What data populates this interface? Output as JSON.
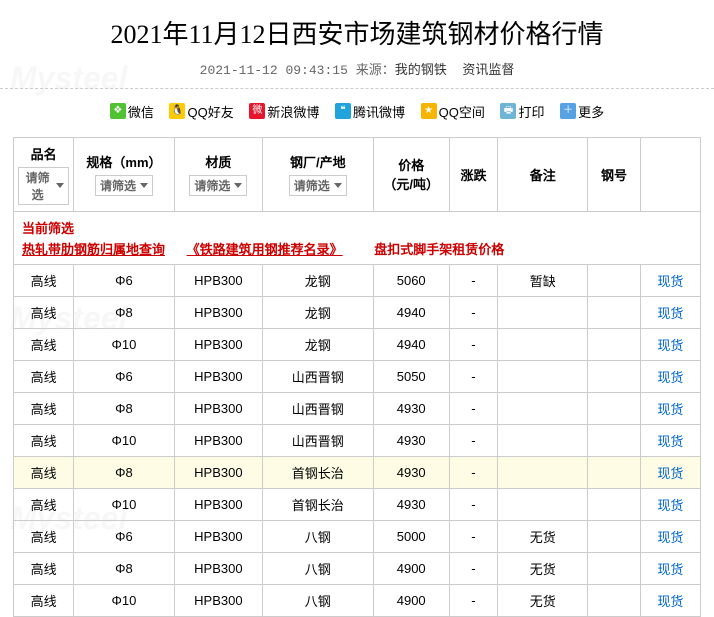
{
  "page": {
    "title": "2021年11月12日西安市场建筑钢材价格行情",
    "datetime": "2021-11-12 09:43:15",
    "source_label": "来源：",
    "source_name": "我的钢铁",
    "supervision": "资讯监督",
    "watermark": "Mysteel"
  },
  "share": {
    "wechat": "微信",
    "qq": "QQ好友",
    "weibo": "新浪微博",
    "tencent": "腾讯微博",
    "qzone": "QQ空间",
    "print": "打印",
    "more": "更多"
  },
  "share_colors": {
    "wechat": "#51c332",
    "qq": "#ffcb05",
    "weibo": "#e6162d",
    "tencent": "#21a3dc",
    "qzone": "#f8b500",
    "print": "#6db4d6",
    "more": "#56a2e3"
  },
  "table": {
    "headers": {
      "name": "品名",
      "spec": "规格（mm）",
      "material": "材质",
      "origin": "钢厂/产地",
      "price": "价格\n（元/吨）",
      "change": "涨跌",
      "remark": "备注",
      "steel_no": "钢号"
    },
    "filter_placeholder": "请筛选",
    "links_row": {
      "current_filter": "当前筛选",
      "link1": "热轧带肋钢筋归属地查询",
      "link2": "《铁路建筑用钢推荐名录》",
      "link3": "盘扣式脚手架租赁价格"
    },
    "stock_link": "现货",
    "rows": [
      {
        "name": "高线",
        "spec": "Φ6",
        "material": "HPB300",
        "origin": "龙钢",
        "price": "5060",
        "change": "-",
        "remark": "暂缺",
        "steel_no": "",
        "hl": false
      },
      {
        "name": "高线",
        "spec": "Φ8",
        "material": "HPB300",
        "origin": "龙钢",
        "price": "4940",
        "change": "-",
        "remark": "",
        "steel_no": "",
        "hl": false
      },
      {
        "name": "高线",
        "spec": "Φ10",
        "material": "HPB300",
        "origin": "龙钢",
        "price": "4940",
        "change": "-",
        "remark": "",
        "steel_no": "",
        "hl": false
      },
      {
        "name": "高线",
        "spec": "Φ6",
        "material": "HPB300",
        "origin": "山西晋钢",
        "price": "5050",
        "change": "-",
        "remark": "",
        "steel_no": "",
        "hl": false
      },
      {
        "name": "高线",
        "spec": "Φ8",
        "material": "HPB300",
        "origin": "山西晋钢",
        "price": "4930",
        "change": "-",
        "remark": "",
        "steel_no": "",
        "hl": false
      },
      {
        "name": "高线",
        "spec": "Φ10",
        "material": "HPB300",
        "origin": "山西晋钢",
        "price": "4930",
        "change": "-",
        "remark": "",
        "steel_no": "",
        "hl": false
      },
      {
        "name": "高线",
        "spec": "Φ8",
        "material": "HPB300",
        "origin": "首钢长治",
        "price": "4930",
        "change": "-",
        "remark": "",
        "steel_no": "",
        "hl": true
      },
      {
        "name": "高线",
        "spec": "Φ10",
        "material": "HPB300",
        "origin": "首钢长治",
        "price": "4930",
        "change": "-",
        "remark": "",
        "steel_no": "",
        "hl": false
      },
      {
        "name": "高线",
        "spec": "Φ6",
        "material": "HPB300",
        "origin": "八钢",
        "price": "5000",
        "change": "-",
        "remark": "无货",
        "steel_no": "",
        "hl": false
      },
      {
        "name": "高线",
        "spec": "Φ8",
        "material": "HPB300",
        "origin": "八钢",
        "price": "4900",
        "change": "-",
        "remark": "无货",
        "steel_no": "",
        "hl": false
      },
      {
        "name": "高线",
        "spec": "Φ10",
        "material": "HPB300",
        "origin": "八钢",
        "price": "4900",
        "change": "-",
        "remark": "无货",
        "steel_no": "",
        "hl": false
      }
    ]
  }
}
